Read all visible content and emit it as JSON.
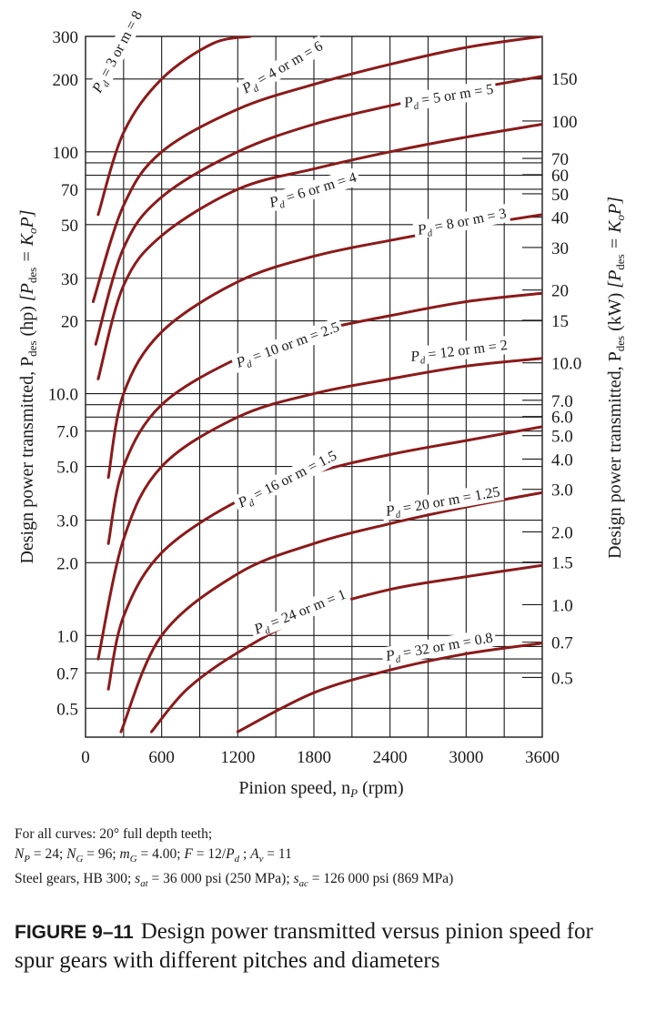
{
  "chart_data": {
    "type": "line",
    "xlabel": "Pinion speed, n",
    "xlabel_sub": "P",
    "xlabel_unit": "(rpm)",
    "x_ticks": [
      "0",
      "600",
      "1200",
      "1800",
      "2400",
      "3000",
      "3600"
    ],
    "xlim": [
      0,
      3600
    ],
    "ylabel_left": "Design power transmitted, P",
    "ylabel_left_sub": "des",
    "ylabel_left_unit": "(hp)",
    "ylabel_left_eq": "[P",
    "ylabel_left_eq_sub": "des",
    "ylabel_left_eq_rest": " = K",
    "ylabel_left_eq_sub2": "o",
    "ylabel_left_eq_end": "P]",
    "ylabel_right": "Design power transmitted, P",
    "ylabel_right_sub": "des",
    "ylabel_right_unit": "(kW)",
    "y_scale": "log",
    "ylim_hp": [
      0.38,
      300
    ],
    "y_ticks_left": [
      "0.5",
      "0.7",
      "1.0",
      "2.0",
      "3.0",
      "5.0",
      "7.0",
      "10.0",
      "20",
      "30",
      "50",
      "70",
      "100",
      "200",
      "300"
    ],
    "y_ticks_right": [
      "0.5",
      "0.7",
      "1.0",
      "1.5",
      "2.0",
      "3.0",
      "4.0",
      "5.0",
      "6.0",
      "7.0",
      "10.0",
      "15",
      "20",
      "30",
      "40",
      "50",
      "60",
      "70",
      "100",
      "150"
    ],
    "grid": true,
    "series": [
      {
        "name": "P_d = 3 or m = 8",
        "x": [
          100,
          300,
          600,
          1000,
          1300
        ],
        "y": [
          55,
          120,
          200,
          280,
          300
        ]
      },
      {
        "name": "P_d = 4 or m = 6",
        "x": [
          60,
          300,
          600,
          1200,
          1800,
          2400,
          3000,
          3600
        ],
        "y": [
          24,
          60,
          100,
          150,
          190,
          230,
          270,
          300
        ]
      },
      {
        "name": "P_d = 5 or m = 5",
        "x": [
          80,
          300,
          600,
          1200,
          1800,
          2400,
          3000,
          3600
        ],
        "y": [
          16,
          40,
          65,
          100,
          130,
          155,
          180,
          205
        ]
      },
      {
        "name": "P_d = 6 or m = 4",
        "x": [
          100,
          300,
          600,
          1200,
          1800,
          2400,
          3000,
          3600
        ],
        "y": [
          11.5,
          28,
          45,
          70,
          85,
          100,
          115,
          130
        ]
      },
      {
        "name": "P_d = 8 or m = 3",
        "x": [
          180,
          300,
          600,
          1200,
          1800,
          2400,
          3000,
          3600
        ],
        "y": [
          4.5,
          10,
          18,
          29,
          37,
          43,
          49,
          55
        ]
      },
      {
        "name": "P_d = 10 or m = 2.5",
        "x": [
          180,
          300,
          600,
          1200,
          1800,
          2400,
          3000,
          3600
        ],
        "y": [
          2.4,
          5,
          9,
          14,
          18,
          21,
          24,
          26
        ]
      },
      {
        "name": "P_d = 12 or m = 2",
        "x": [
          100,
          300,
          600,
          1200,
          1800,
          2400,
          3000,
          3600
        ],
        "y": [
          0.8,
          2.5,
          5,
          8,
          10,
          11.5,
          13,
          14
        ]
      },
      {
        "name": "P_d = 16 or m = 1.5",
        "x": [
          180,
          300,
          600,
          1200,
          1800,
          2400,
          3000,
          3600
        ],
        "y": [
          0.6,
          1.2,
          2.2,
          3.6,
          4.7,
          5.6,
          6.4,
          7.3
        ]
      },
      {
        "name": "P_d = 20 or m = 1.25",
        "x": [
          280,
          600,
          1200,
          1800,
          2400,
          3000,
          3600
        ],
        "y": [
          0.4,
          1.0,
          1.8,
          2.4,
          2.9,
          3.4,
          3.9
        ]
      },
      {
        "name": "P_d = 24 or m = 1",
        "x": [
          520,
          800,
          1200,
          1800,
          2400,
          3000,
          3600
        ],
        "y": [
          0.4,
          0.6,
          0.85,
          1.25,
          1.55,
          1.75,
          1.95
        ]
      },
      {
        "name": "P_d = 32 or m = 0.8",
        "x": [
          1200,
          1800,
          2400,
          3000,
          3600
        ],
        "y": [
          0.4,
          0.58,
          0.72,
          0.84,
          0.93
        ]
      }
    ],
    "curve_labels": [
      {
        "pre": "P",
        "sub": "d",
        "post": " = 3 or m = 8"
      },
      {
        "pre": "P",
        "sub": "d",
        "post": " = 4 or m = 6"
      },
      {
        "pre": "P",
        "sub": "d",
        "post": " = 5 or m = 5"
      },
      {
        "pre": "P",
        "sub": "d",
        "post": " = 6 or m = 4"
      },
      {
        "pre": "P",
        "sub": "d",
        "post": " = 8 or m = 3"
      },
      {
        "pre": "P",
        "sub": "d",
        "post": " = 10 or m = 2.5"
      },
      {
        "pre": "P",
        "sub": "d",
        "post": " = 12 or m = 2"
      },
      {
        "pre": "P",
        "sub": "d",
        "post": " = 16 or m = 1.5"
      },
      {
        "pre": "P",
        "sub": "d",
        "post": " = 20 or m = 1.25"
      },
      {
        "pre": "P",
        "sub": "d",
        "post": " = 24 or m = 1"
      },
      {
        "pre": "P",
        "sub": "d",
        "post": " = 32 or m = 0.8"
      }
    ],
    "curve_color": "#8b1a1a",
    "grid_color": "#1a1a1a"
  },
  "notes": {
    "line1": "For all curves: 20° full depth teeth;",
    "line2": "N_P = 24; N_G = 96; m_G = 4.00; F = 12/P_d ; A_v = 11",
    "line3": "Steel gears, HB 300; s_at = 36 000 psi (250 MPa); s_ac = 126 000 psi (869 MPa)"
  },
  "caption": {
    "label": "FIGURE 9–11",
    "text": "Design power transmitted versus pinion speed for spur gears with different pitches and diameters"
  }
}
